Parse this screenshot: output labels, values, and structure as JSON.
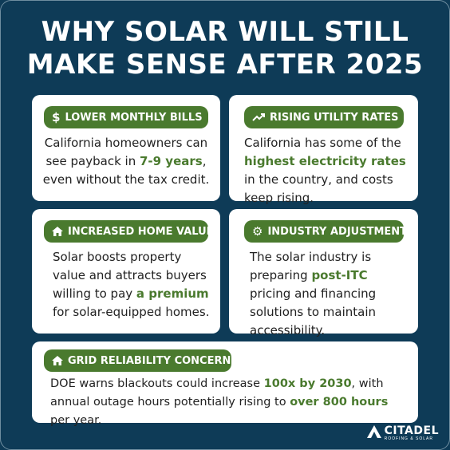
{
  "title_line1": "WHY SOLAR WILL STILL",
  "title_line2": "MAKE SENSE AFTER 2025",
  "accent_color": "#4a7a2e",
  "background_color": "#0e3b57",
  "cards": [
    {
      "icon": "dollar-icon",
      "heading": "LOWER MONTHLY BILLS",
      "text1": "California homeowners can see payback in ",
      "highlight1": "7-9 years",
      "text2": ", even without the tax credit."
    },
    {
      "icon": "trending-up-icon",
      "heading": "RISING UTILITY RATES",
      "text1": "California has some of the ",
      "highlight1": "highest electricity rates",
      "text2": " in the country, and costs keep rising."
    },
    {
      "icon": "home-icon",
      "heading": "INCREASED HOME VALUE",
      "text1": "Solar boosts property value and attracts buyers willing to pay ",
      "highlight1": "a premium",
      "text2": " for solar-equipped homes."
    },
    {
      "icon": "gear-icon",
      "heading": "INDUSTRY ADJUSTMENTS",
      "text1": "The solar industry is preparing ",
      "highlight1": "post-ITC",
      "text2": " pricing and financing solutions to maintain accessibility."
    },
    {
      "icon": "home-icon",
      "heading": "GRID RELIABILITY CONCERNS",
      "text1": "DOE warns blackouts could increase ",
      "highlight1": "100x by 2030",
      "text2": ", with annual outage hours potentially rising to ",
      "highlight2": "over 800 hours",
      "text3": " per year."
    }
  ],
  "logo": {
    "name": "CITADEL",
    "tagline": "ROOFING & SOLAR"
  }
}
